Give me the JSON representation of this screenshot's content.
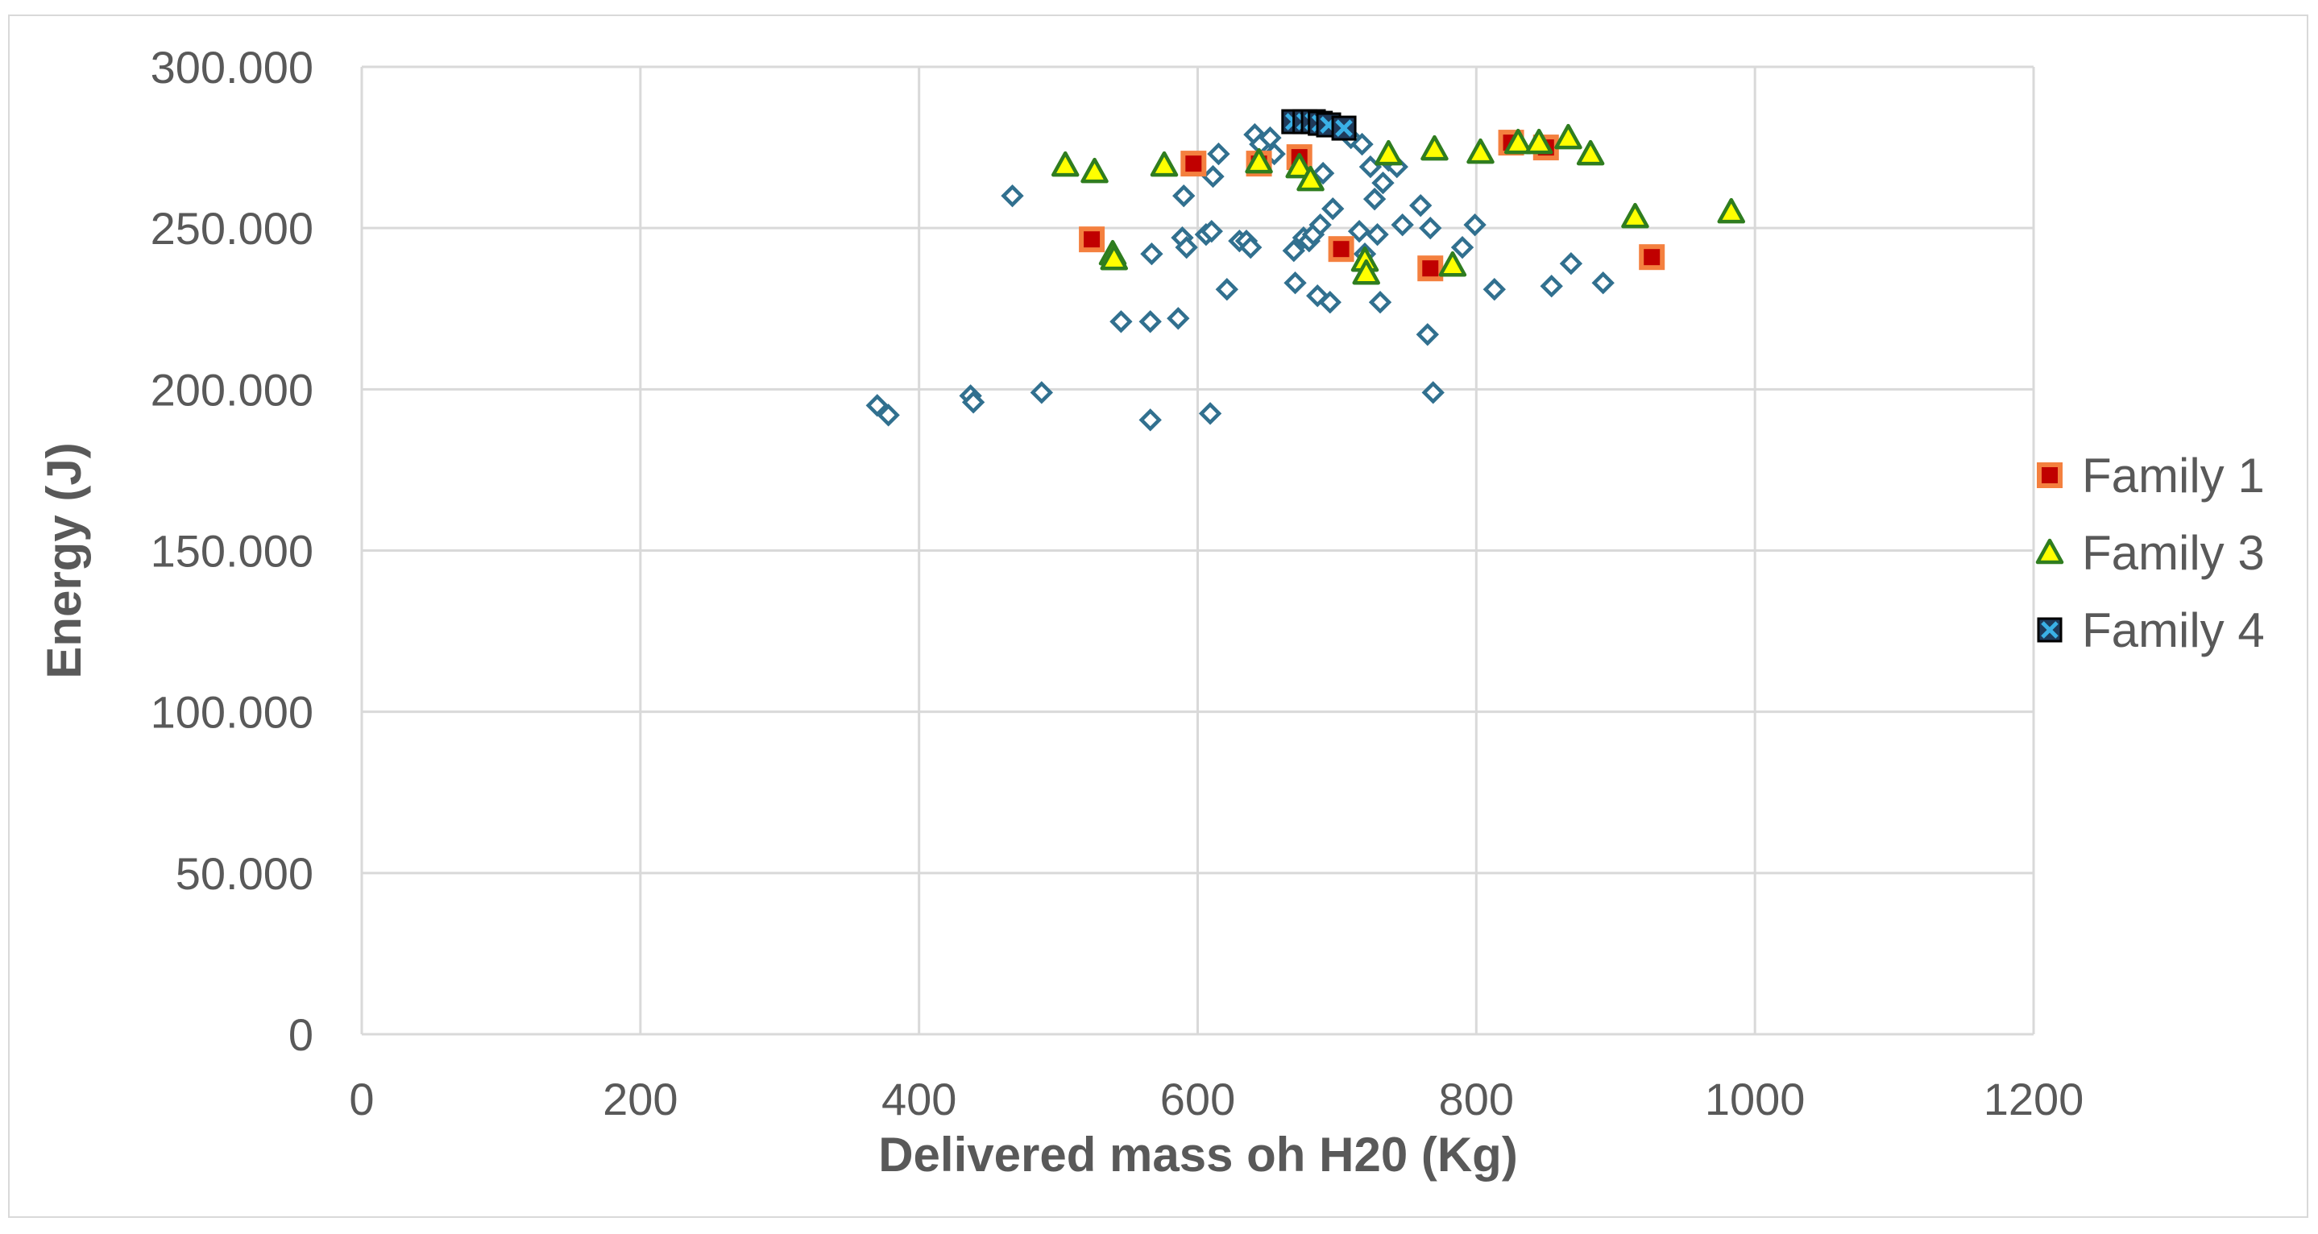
{
  "chart_data": {
    "type": "scatter",
    "title": "",
    "xlabel": "Delivered mass oh H20 (Kg)",
    "ylabel": "Energy (J)",
    "xlim": [
      0,
      1200
    ],
    "ylim": [
      0,
      300000
    ],
    "x_ticks": [
      0,
      200,
      400,
      600,
      800,
      1000,
      1200
    ],
    "x_tick_labels": [
      "0",
      "200",
      "400",
      "600",
      "800",
      "1000",
      "1200"
    ],
    "y_ticks": [
      0,
      50000,
      100000,
      150000,
      200000,
      250000,
      300000
    ],
    "y_tick_labels": [
      "0",
      "50.000",
      "100.000",
      "150.000",
      "200.000",
      "250.000",
      "300.000"
    ],
    "grid": true,
    "legend_position": "right",
    "series": [
      {
        "name": "",
        "in_legend": false,
        "marker": "diamond",
        "color": "#31708f",
        "points": [
          [
            370,
            195000
          ],
          [
            378,
            192000
          ],
          [
            437,
            198000
          ],
          [
            439,
            196000
          ],
          [
            467,
            260000
          ],
          [
            488,
            199000
          ],
          [
            545,
            221000
          ],
          [
            566,
            190500
          ],
          [
            566,
            221000
          ],
          [
            567,
            242000
          ],
          [
            586,
            222000
          ],
          [
            589,
            247000
          ],
          [
            590,
            260000
          ],
          [
            592,
            244000
          ],
          [
            606,
            248000
          ],
          [
            609,
            192500
          ],
          [
            610,
            249000
          ],
          [
            611,
            266000
          ],
          [
            615,
            273000
          ],
          [
            621,
            231000
          ],
          [
            630,
            246000
          ],
          [
            635,
            246000
          ],
          [
            638,
            244000
          ],
          [
            641,
            279000
          ],
          [
            645,
            276000
          ],
          [
            652,
            278000
          ],
          [
            655,
            273000
          ],
          [
            669,
            243000
          ],
          [
            670,
            233000
          ],
          [
            676,
            247000
          ],
          [
            680,
            246000
          ],
          [
            683,
            248000
          ],
          [
            686,
            229000
          ],
          [
            688,
            251000
          ],
          [
            690,
            267000
          ],
          [
            695,
            227000
          ],
          [
            697,
            256000
          ],
          [
            710,
            278000
          ],
          [
            716,
            249000
          ],
          [
            718,
            276000
          ],
          [
            720,
            242000
          ],
          [
            724,
            269000
          ],
          [
            727,
            259000
          ],
          [
            729,
            248000
          ],
          [
            731,
            227000
          ],
          [
            733,
            264000
          ],
          [
            737,
            271000
          ],
          [
            743,
            269000
          ],
          [
            747,
            251000
          ],
          [
            760,
            257000
          ],
          [
            765,
            217000
          ],
          [
            767,
            250000
          ],
          [
            769,
            199000
          ],
          [
            790,
            244000
          ],
          [
            799,
            251000
          ],
          [
            813,
            231000
          ],
          [
            854,
            232000
          ],
          [
            868,
            239000
          ],
          [
            891,
            233000
          ]
        ]
      },
      {
        "name": "Family 1",
        "in_legend": true,
        "marker": "square",
        "fill": "#c00000",
        "stroke": "#f4803f",
        "points": [
          [
            524,
            246500
          ],
          [
            597,
            270000
          ],
          [
            644,
            270000
          ],
          [
            673,
            272000
          ],
          [
            703,
            243500
          ],
          [
            767,
            237500
          ],
          [
            825,
            276500
          ],
          [
            850,
            275000
          ],
          [
            926,
            241000
          ]
        ]
      },
      {
        "name": "Family 3",
        "in_legend": true,
        "marker": "triangle",
        "fill": "#ffff00",
        "stroke": "#2f7d1f",
        "points": [
          [
            505,
            269500
          ],
          [
            526,
            267500
          ],
          [
            539,
            242000
          ],
          [
            540,
            240500
          ],
          [
            576,
            269500
          ],
          [
            644,
            270500
          ],
          [
            673,
            269000
          ],
          [
            681,
            265000
          ],
          [
            720,
            240000
          ],
          [
            721,
            236000
          ],
          [
            737,
            273000
          ],
          [
            770,
            274500
          ],
          [
            783,
            238500
          ],
          [
            803,
            273500
          ],
          [
            830,
            276500
          ],
          [
            845,
            276500
          ],
          [
            866,
            278000
          ],
          [
            882,
            273000
          ],
          [
            914,
            253500
          ],
          [
            983,
            255000
          ]
        ]
      },
      {
        "name": "Family 4",
        "in_legend": true,
        "marker": "x-square",
        "fill": "#1f3a5a",
        "stroke": "#000000",
        "x_color": "#3ab0e6",
        "points": [
          [
            669,
            283000
          ],
          [
            677,
            283000
          ],
          [
            683,
            283000
          ],
          [
            688,
            282500
          ],
          [
            694,
            282000
          ],
          [
            705,
            281000
          ]
        ]
      }
    ]
  }
}
